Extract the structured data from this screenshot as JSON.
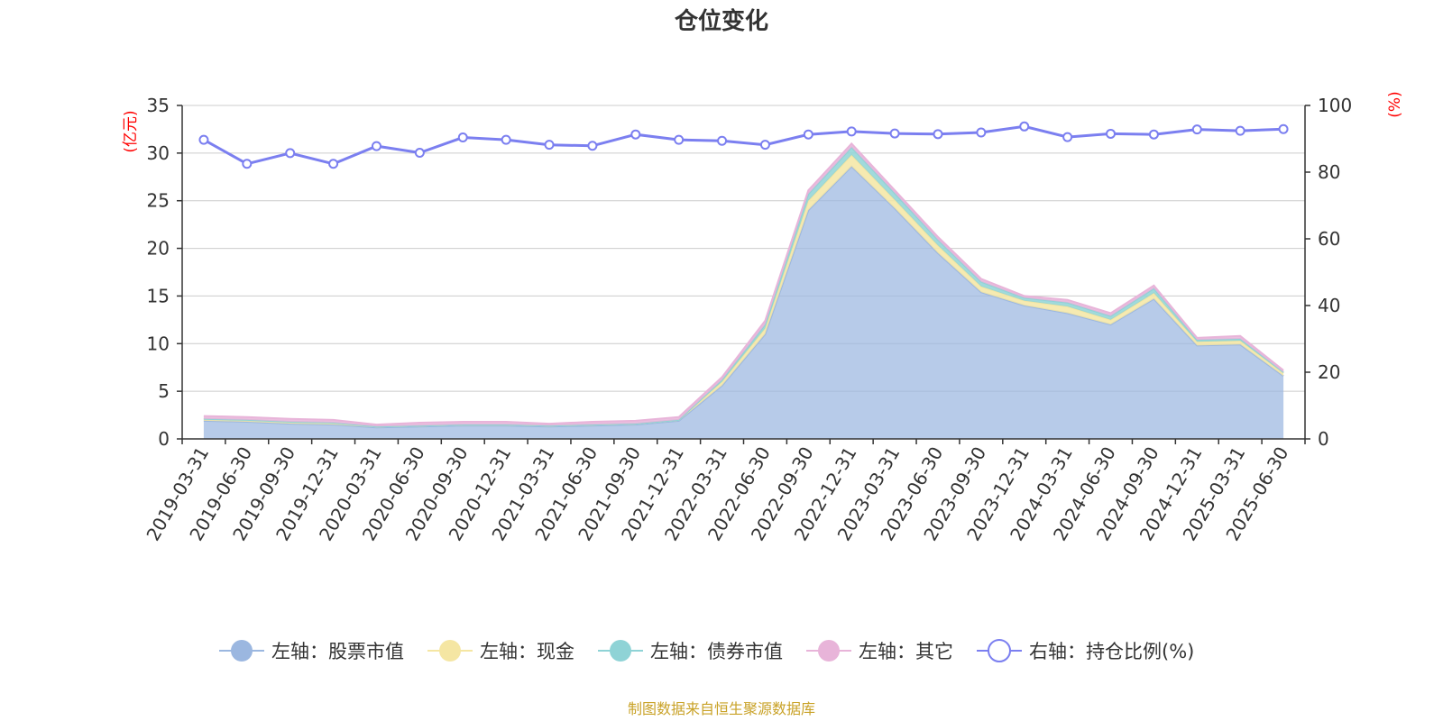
{
  "chart_data": {
    "type": "area",
    "title": "仓位变化",
    "left_axis_unit": "(亿元)",
    "right_axis_unit": "(%)",
    "left_ylim": [
      0,
      35
    ],
    "left_yticks": [
      0,
      5,
      10,
      15,
      20,
      25,
      30,
      35
    ],
    "right_ylim": [
      0,
      100
    ],
    "right_yticks": [
      0,
      20,
      40,
      60,
      80,
      100
    ],
    "grid": true,
    "legend_position": "bottom",
    "categories": [
      "2019-03-31",
      "2019-06-30",
      "2019-09-30",
      "2019-12-31",
      "2020-03-31",
      "2020-06-30",
      "2020-09-30",
      "2020-12-31",
      "2021-03-31",
      "2021-06-30",
      "2021-09-30",
      "2021-12-31",
      "2022-03-31",
      "2022-06-30",
      "2022-09-30",
      "2022-12-31",
      "2023-03-31",
      "2023-06-30",
      "2023-09-30",
      "2023-12-31",
      "2024-03-31",
      "2024-06-30",
      "2024-09-30",
      "2024-12-31",
      "2025-03-31",
      "2025-06-30"
    ],
    "series": [
      {
        "name": "左轴：股票市值",
        "axis": "left",
        "color": "#9bb7e0",
        "values": [
          1.9,
          1.8,
          1.6,
          1.5,
          1.2,
          1.3,
          1.4,
          1.4,
          1.3,
          1.4,
          1.5,
          1.9,
          5.6,
          11.0,
          24.0,
          28.6,
          24.2,
          19.5,
          15.4,
          14.0,
          13.2,
          12.0,
          14.7,
          9.8,
          9.9,
          6.6
        ]
      },
      {
        "name": "左轴：现金",
        "axis": "left",
        "color": "#f5e6a3",
        "values": [
          0.2,
          0.2,
          0.2,
          0.2,
          0.1,
          0.1,
          0.1,
          0.1,
          0.1,
          0.1,
          0.1,
          0.1,
          0.4,
          0.6,
          1.0,
          1.2,
          0.9,
          0.8,
          0.6,
          0.5,
          0.7,
          0.5,
          0.6,
          0.4,
          0.4,
          0.3
        ]
      },
      {
        "name": "左轴：债券市值",
        "axis": "left",
        "color": "#8fd3d6",
        "values": [
          0.0,
          0.0,
          0.0,
          0.0,
          0.0,
          0.0,
          0.0,
          0.0,
          0.0,
          0.0,
          0.0,
          0.0,
          0.2,
          0.4,
          0.7,
          0.8,
          0.7,
          0.6,
          0.5,
          0.3,
          0.4,
          0.4,
          0.5,
          0.2,
          0.2,
          0.1
        ]
      },
      {
        "name": "左轴：其它",
        "axis": "left",
        "color": "#e8b4d9",
        "values": [
          0.3,
          0.3,
          0.3,
          0.3,
          0.2,
          0.3,
          0.3,
          0.3,
          0.2,
          0.3,
          0.3,
          0.3,
          0.3,
          0.4,
          0.4,
          0.4,
          0.3,
          0.3,
          0.3,
          0.2,
          0.3,
          0.3,
          0.3,
          0.2,
          0.3,
          0.2
        ]
      },
      {
        "name": "右轴：持仓比例(%)",
        "axis": "right",
        "color": "#7b7ff0",
        "values": [
          89.7,
          82.5,
          85.7,
          82.5,
          87.8,
          85.8,
          90.4,
          89.7,
          88.2,
          87.9,
          91.3,
          89.7,
          89.4,
          88.2,
          91.3,
          92.2,
          91.6,
          91.4,
          91.9,
          93.7,
          90.5,
          91.5,
          91.3,
          92.8,
          92.4,
          92.9
        ]
      }
    ],
    "source_note": "制图数据来自恒生聚源数据库"
  }
}
